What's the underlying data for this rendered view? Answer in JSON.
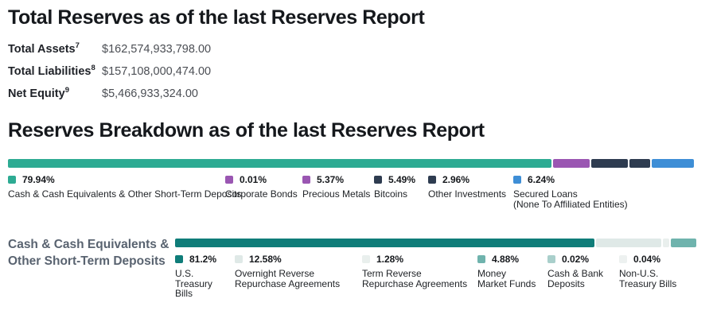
{
  "totals": {
    "title": "Total Reserves as of the last Reserves Report",
    "stats": [
      {
        "label": "Total Assets",
        "sup": "7",
        "value": "$162,574,933,798.00"
      },
      {
        "label": "Total Liabilities",
        "sup": "8",
        "value": "$157,108,000,474.00"
      },
      {
        "label": "Net Equity",
        "sup": "9",
        "value": "$5,466,933,324.00"
      }
    ]
  },
  "breakdown": {
    "title": "Reserves Breakdown as of the last Reserves Report",
    "sub_section_label_line1": "Cash & Cash Equivalents &",
    "sub_section_label_line2": "Other Short-Term Deposits"
  },
  "chart_data": [
    {
      "type": "bar",
      "variant": "stacked-horizontal",
      "title": "Reserves Breakdown as of the last Reserves Report",
      "unit": "percent",
      "segments": [
        {
          "label": "Cash & Cash Equivalents & Other Short-Term Deposits",
          "sublabel": "",
          "pct": 79.94,
          "pct_display": "79.94%",
          "color": "#2dab93"
        },
        {
          "label": "Corporate Bonds",
          "sublabel": "",
          "pct": 0.01,
          "pct_display": "0.01%",
          "color": "#9a56b2"
        },
        {
          "label": "Precious Metals",
          "sublabel": "",
          "pct": 5.37,
          "pct_display": "5.37%",
          "color": "#9a56b2"
        },
        {
          "label": "Bitcoins",
          "sublabel": "",
          "pct": 5.49,
          "pct_display": "5.49%",
          "color": "#2e3c50"
        },
        {
          "label": "Other Investments",
          "sublabel": "",
          "pct": 2.96,
          "pct_display": "2.96%",
          "color": "#2e3c50"
        },
        {
          "label": "Secured Loans",
          "sublabel": "(None To Affiliated Entities)",
          "pct": 6.24,
          "pct_display": "6.24%",
          "color": "#3e8ed6"
        }
      ]
    },
    {
      "type": "bar",
      "variant": "stacked-horizontal",
      "title": "Cash & Cash Equivalents & Other Short-Term Deposits",
      "unit": "percent",
      "segments": [
        {
          "label": "U.S. Treasury Bills",
          "sublabel": "",
          "pct": 81.2,
          "pct_display": "81.2%",
          "color": "#0f7d79"
        },
        {
          "label": "Overnight Reverse Repurchase Agreements",
          "sublabel": "",
          "pct": 12.58,
          "pct_display": "12.58%",
          "color": "#dfe9e7"
        },
        {
          "label": "Term Reverse Repurchase Agreements",
          "sublabel": "",
          "pct": 1.28,
          "pct_display": "1.28%",
          "color": "#e9efed"
        },
        {
          "label": "Money Market Funds",
          "sublabel": "",
          "pct": 4.88,
          "pct_display": "4.88%",
          "color": "#6fb3ad"
        },
        {
          "label": "Cash & Bank Deposits",
          "sublabel": "",
          "pct": 0.02,
          "pct_display": "0.02%",
          "color": "#a9cfcb"
        },
        {
          "label": "Non-U.S. Treasury Bills",
          "sublabel": "",
          "pct": 0.04,
          "pct_display": "0.04%",
          "color": "#edf1f0"
        }
      ]
    }
  ]
}
